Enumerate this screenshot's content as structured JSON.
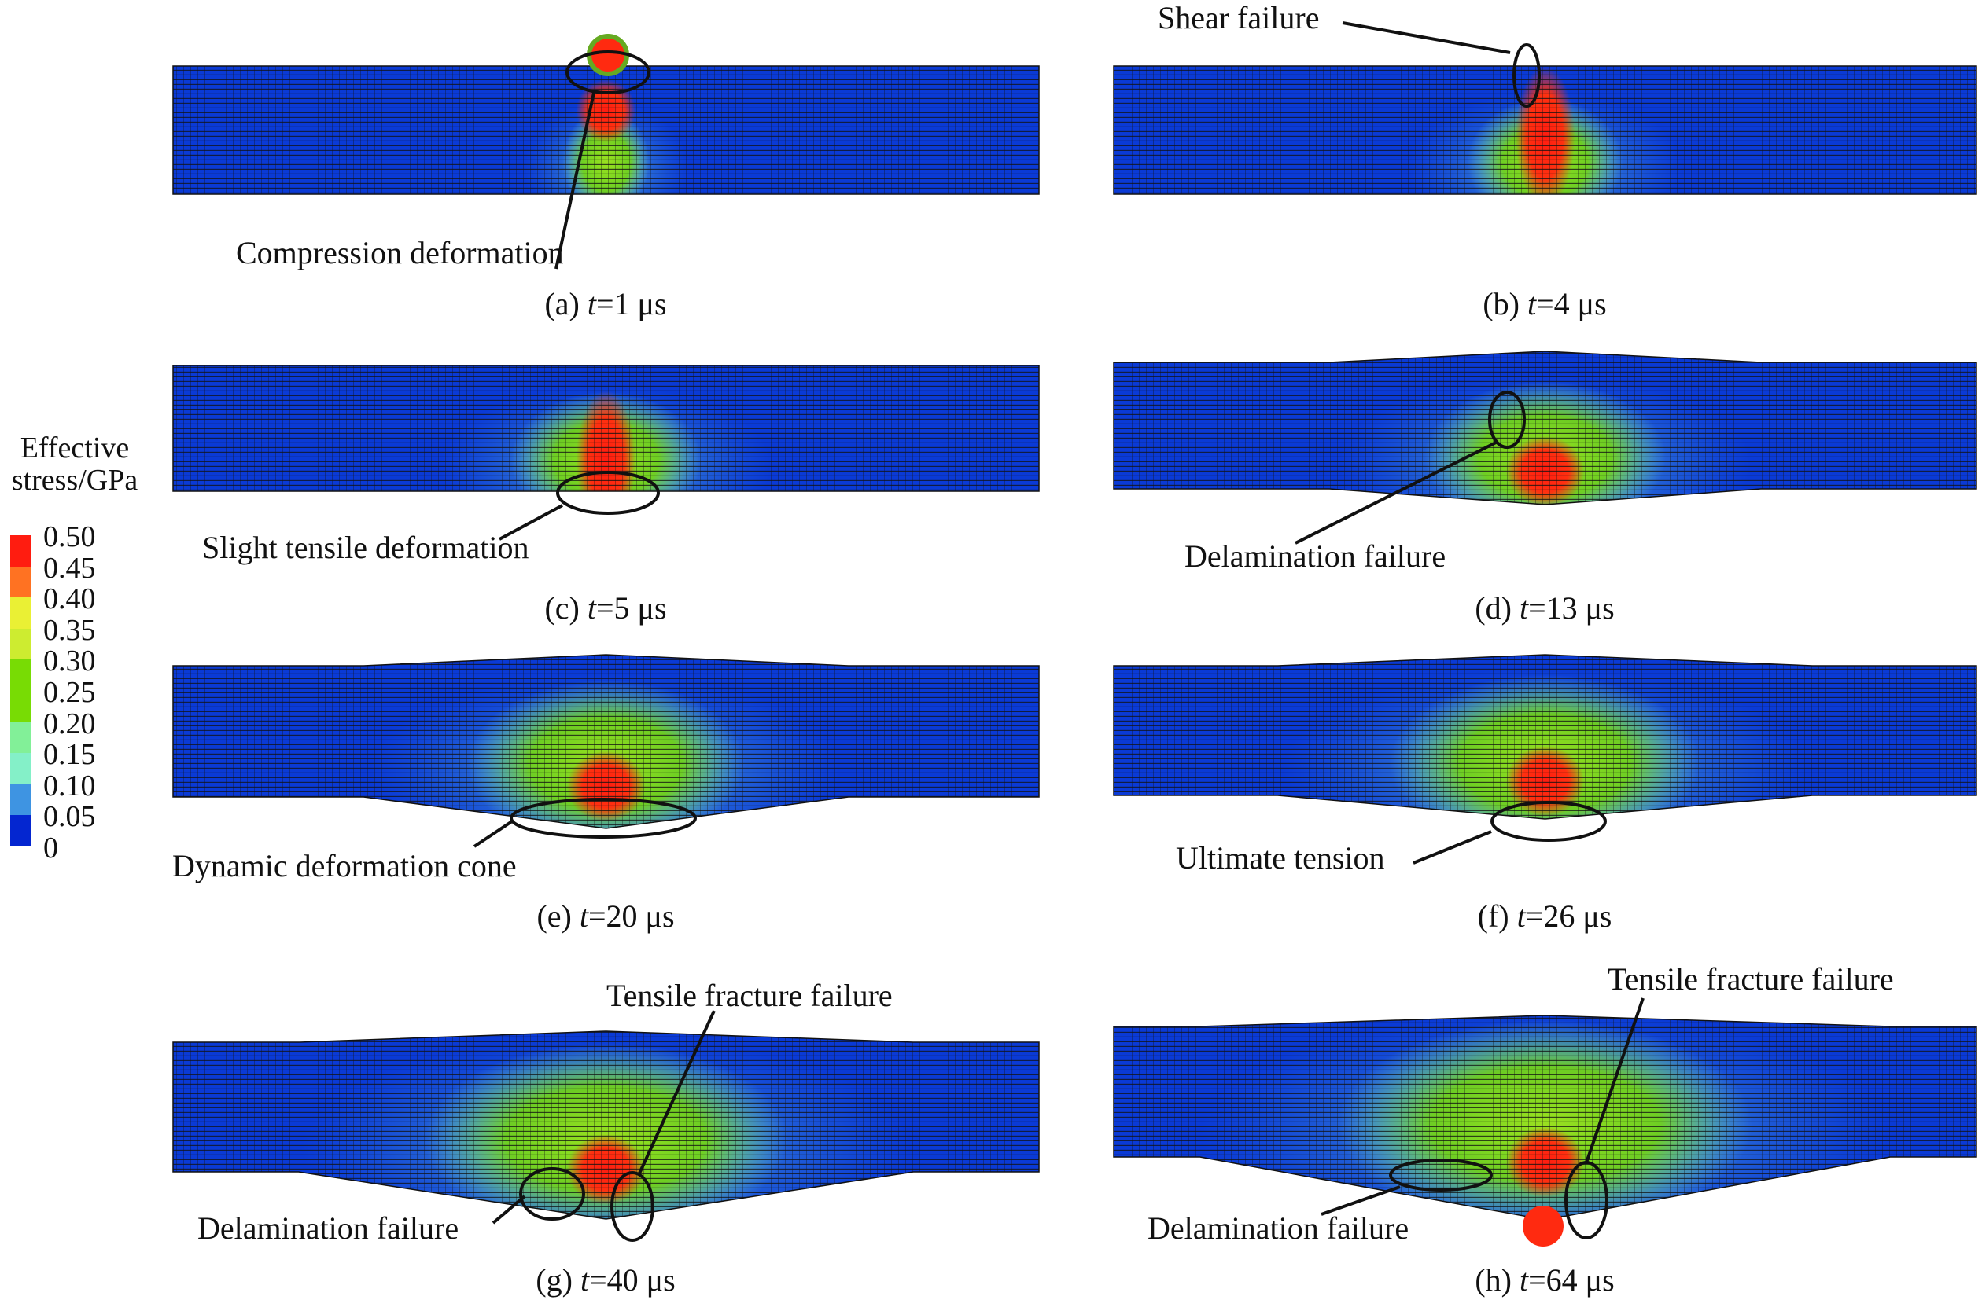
{
  "legend": {
    "title_line1": "Effective",
    "title_line2": "stress/GPa",
    "labels": [
      "0.50",
      "0.45",
      "0.40",
      "0.35",
      "0.30",
      "0.25",
      "0.20",
      "0.15",
      "0.10",
      "0.05",
      "0"
    ],
    "colors": [
      "#ff1c10",
      "#ff7222",
      "#eaf034",
      "#cdec30",
      "#78dc04",
      "#78dc04",
      "#82f098",
      "#84f0c8",
      "#3e94e2",
      "#0426d0"
    ]
  },
  "panels": [
    {
      "label": "(a)",
      "var": "t",
      "value": "=1 μs"
    },
    {
      "label": "(b)",
      "var": "t",
      "value": "=4 μs"
    },
    {
      "label": "(c)",
      "var": "t",
      "value": "=5 μs"
    },
    {
      "label": "(d)",
      "var": "t",
      "value": "=13 μs"
    },
    {
      "label": "(e)",
      "var": "t",
      "value": "=20 μs"
    },
    {
      "label": "(f)",
      "var": "t",
      "value": "=26 μs"
    },
    {
      "label": "(g)",
      "var": "t",
      "value": "=40 μs"
    },
    {
      "label": "(h)",
      "var": "t",
      "value": "=64 μs"
    }
  ],
  "annotations": {
    "a": "Compression deformation",
    "b": "Shear failure",
    "c": "Slight tensile deformation",
    "d": "Delamination failure",
    "e": "Dynamic deformation cone",
    "f": "Ultimate tension",
    "g_top": "Tensile fracture failure",
    "g_bottom": "Delamination failure",
    "h_top": "Tensile fracture failure",
    "h_bottom": "Delamination failure"
  }
}
